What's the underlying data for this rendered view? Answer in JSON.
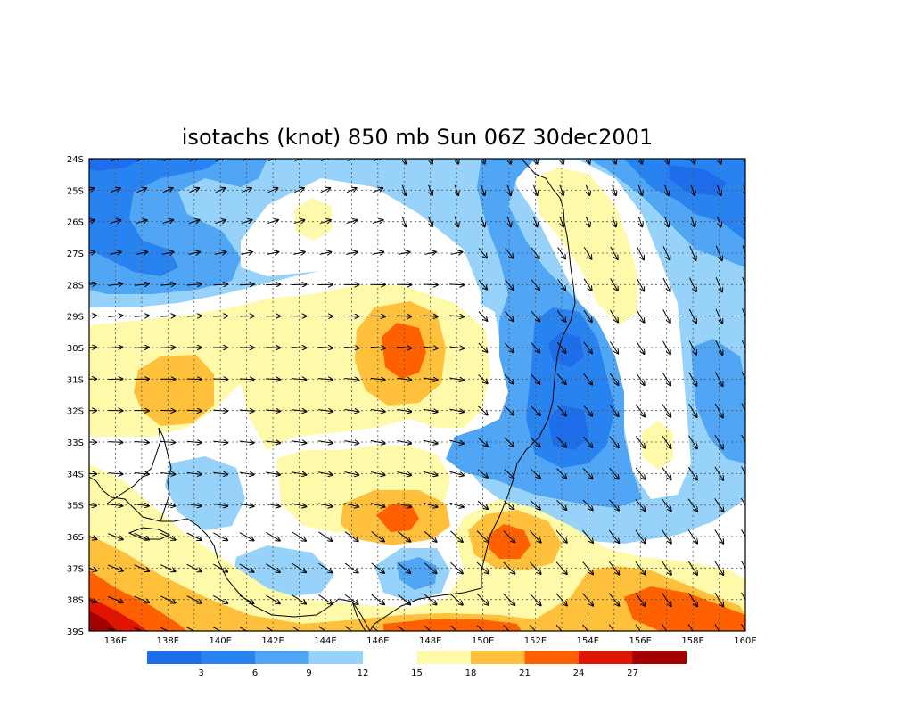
{
  "title": "isotachs (knot) 850 mb Sun 06Z 30dec2001",
  "map": {
    "lat_labels": [
      "24S",
      "25S",
      "26S",
      "27S",
      "28S",
      "29S",
      "30S",
      "31S",
      "32S",
      "33S",
      "34S",
      "35S",
      "36S",
      "37S",
      "38S",
      "39S"
    ],
    "lon_labels": [
      "136E",
      "138E",
      "140E",
      "142E",
      "144E",
      "146E",
      "148E",
      "150E",
      "152E",
      "154E",
      "156E",
      "158E",
      "160E"
    ],
    "lon_range": [
      135,
      160
    ],
    "lat_range": [
      -39,
      -24
    ],
    "grid": "dashed",
    "colors": {
      "border": "#000000",
      "grid": "#555555",
      "coastline": "#000000",
      "vector": "#000000"
    }
  },
  "colorbar": {
    "bins": [
      {
        "color": "#1e6eeb"
      },
      {
        "color": "#2882f0"
      },
      {
        "color": "#50a5f5"
      },
      {
        "color": "#96d2fa"
      },
      {
        "color": "#ffffff"
      },
      {
        "color": "#fffaaa"
      },
      {
        "color": "#ffc03c"
      },
      {
        "color": "#ff6000"
      },
      {
        "color": "#e11400"
      },
      {
        "color": "#a50000"
      }
    ],
    "labels": [
      "3",
      "6",
      "9",
      "12",
      "15",
      "18",
      "21",
      "24",
      "27"
    ]
  }
}
